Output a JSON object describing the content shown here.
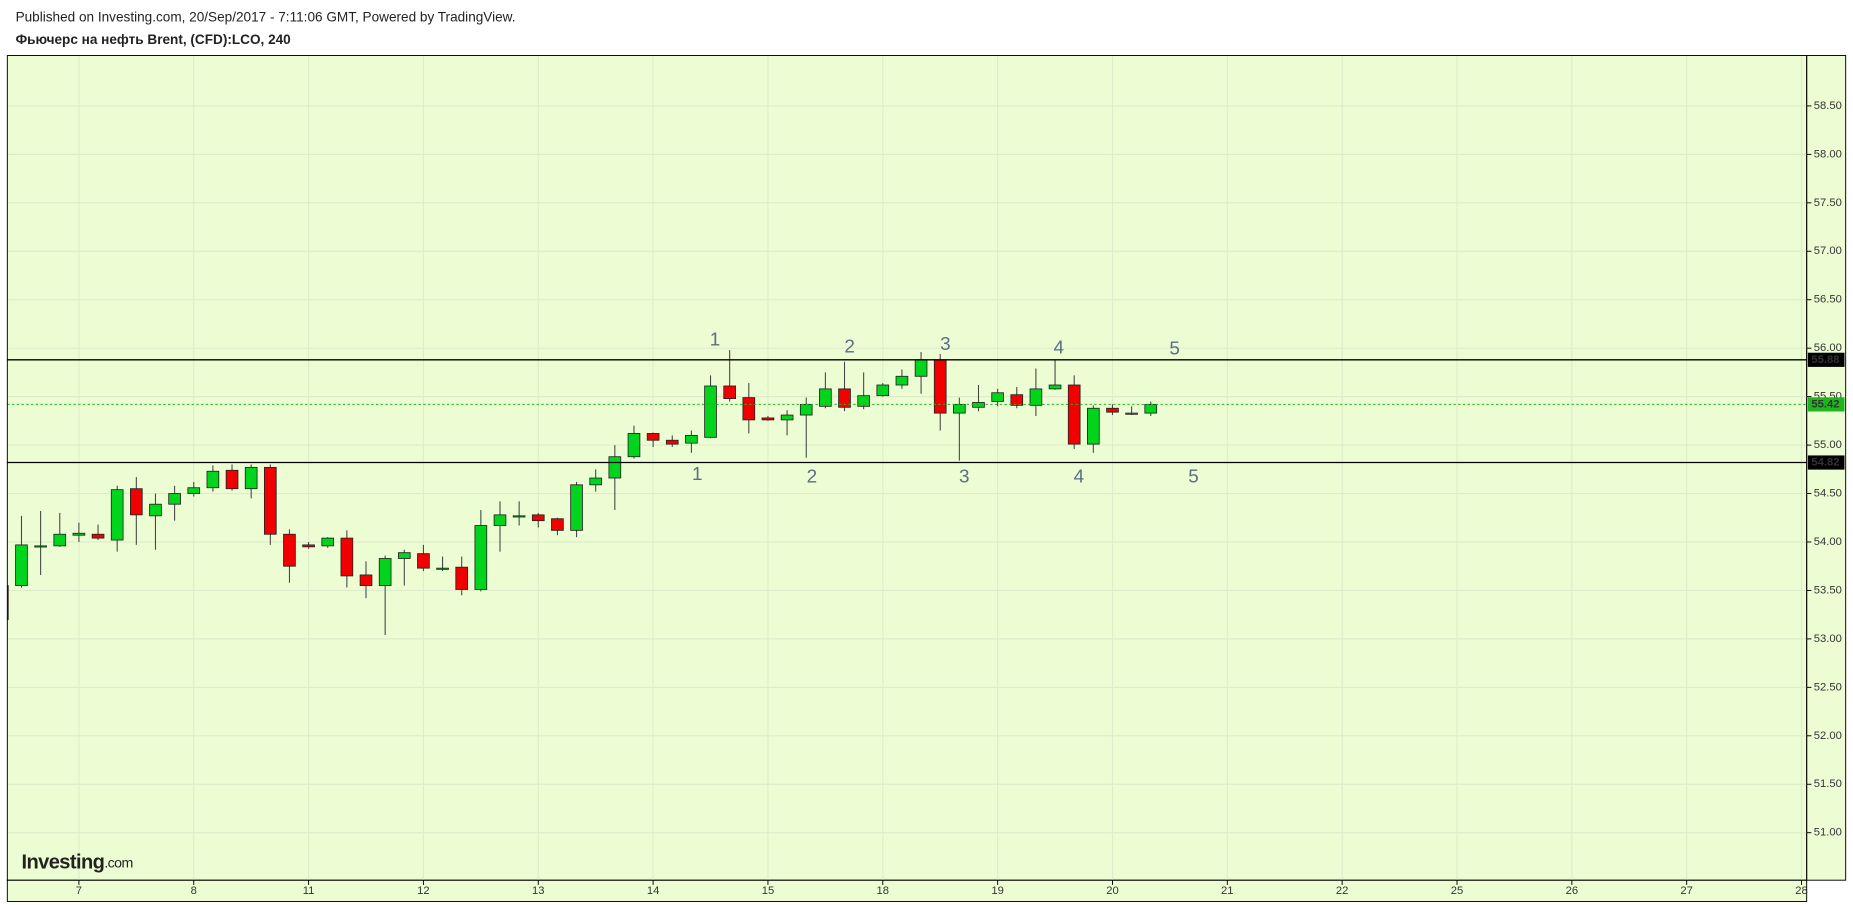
{
  "header": {
    "published": "Published on Investing.com, 20/Sep/2017 - 7:11:06 GMT, Powered by TradingView.",
    "symbol": "Фьючерс на нефть Brent, (CFD):LCO, 240"
  },
  "logo": {
    "main": "Investing",
    "suffix": ".com"
  },
  "chart_data": {
    "type": "candlestick",
    "x": [
      -1,
      0,
      1,
      2,
      3,
      4,
      5,
      6,
      7,
      8,
      9,
      10,
      11,
      12,
      13,
      14,
      15,
      16,
      17,
      18,
      19,
      20,
      21,
      22,
      23,
      24,
      25,
      26,
      27,
      28,
      29,
      30,
      31,
      32,
      33,
      34,
      35,
      36,
      37,
      38,
      39,
      40,
      41,
      42,
      43,
      44,
      45,
      46,
      47,
      48,
      49,
      50,
      51,
      52,
      53,
      54,
      55,
      56,
      57,
      58,
      59
    ],
    "open": [
      53.2,
      53.55,
      53.96,
      53.96,
      54.07,
      54.08,
      54.02,
      54.55,
      54.27,
      54.39,
      54.5,
      54.56,
      54.74,
      54.55,
      54.77,
      54.08,
      53.97,
      53.96,
      54.04,
      53.66,
      53.55,
      53.83,
      53.88,
      53.73,
      53.74,
      53.51,
      54.17,
      54.27,
      54.28,
      54.24,
      54.12,
      54.59,
      54.66,
      54.88,
      55.12,
      55.05,
      55.02,
      55.08,
      55.61,
      55.49,
      55.28,
      55.26,
      55.31,
      55.4,
      55.58,
      55.4,
      55.51,
      55.62,
      55.71,
      55.88,
      55.33,
      55.39,
      55.45,
      55.52,
      55.41,
      55.58,
      55.62,
      55.01,
      55.38,
      55.33,
      55.33
    ],
    "high": [
      53.6,
      54.27,
      54.32,
      54.3,
      54.2,
      54.18,
      54.58,
      54.67,
      54.5,
      54.58,
      54.62,
      54.79,
      54.8,
      54.8,
      54.8,
      54.13,
      54.0,
      54.05,
      54.12,
      53.8,
      53.86,
      53.92,
      53.97,
      53.85,
      53.85,
      54.33,
      54.42,
      54.42,
      54.3,
      54.25,
      54.62,
      54.75,
      55.0,
      55.2,
      55.13,
      55.1,
      55.15,
      55.72,
      55.98,
      55.64,
      55.3,
      55.36,
      55.49,
      55.75,
      55.86,
      55.75,
      55.64,
      55.78,
      55.96,
      55.94,
      55.49,
      55.62,
      55.58,
      55.6,
      55.79,
      55.88,
      55.72,
      55.41,
      55.42,
      55.4,
      55.45
    ],
    "low": [
      53.17,
      53.53,
      53.66,
      53.95,
      54.0,
      54.02,
      53.9,
      53.97,
      53.92,
      54.22,
      54.47,
      54.52,
      54.53,
      54.45,
      53.97,
      53.58,
      53.93,
      53.94,
      53.53,
      53.42,
      53.04,
      53.55,
      53.7,
      53.7,
      53.45,
      53.49,
      53.9,
      54.17,
      54.15,
      54.07,
      54.05,
      54.52,
      54.33,
      54.86,
      54.98,
      54.98,
      54.92,
      55.07,
      55.45,
      55.12,
      55.25,
      55.1,
      54.87,
      55.38,
      55.35,
      55.37,
      55.5,
      55.58,
      55.53,
      55.15,
      54.84,
      55.35,
      55.4,
      55.38,
      55.3,
      55.57,
      54.96,
      54.92,
      55.31,
      55.31,
      55.3
    ],
    "close": [
      53.55,
      53.97,
      53.96,
      54.08,
      54.09,
      54.04,
      54.54,
      54.28,
      54.39,
      54.5,
      54.56,
      54.73,
      54.55,
      54.77,
      54.08,
      53.75,
      53.95,
      54.04,
      53.65,
      53.55,
      53.83,
      53.89,
      53.73,
      53.73,
      53.51,
      54.17,
      54.28,
      54.27,
      54.22,
      54.12,
      54.59,
      54.66,
      54.88,
      55.12,
      55.05,
      55.01,
      55.1,
      55.61,
      55.48,
      55.26,
      55.26,
      55.31,
      55.42,
      55.58,
      55.39,
      55.51,
      55.62,
      55.71,
      55.88,
      55.33,
      55.42,
      55.44,
      55.54,
      55.41,
      55.58,
      55.62,
      55.01,
      55.38,
      55.34,
      55.33,
      55.42
    ],
    "up_color": "#00d41c",
    "down_color": "#f20000",
    "background": "#edfdd3",
    "xlim": [
      -0.74,
      93.27
    ],
    "xticks": [
      {
        "value": 3,
        "label": "7"
      },
      {
        "value": 9,
        "label": "8"
      },
      {
        "value": 15,
        "label": "11"
      },
      {
        "value": 21,
        "label": "12"
      },
      {
        "value": 27,
        "label": "13"
      },
      {
        "value": 33,
        "label": "14"
      },
      {
        "value": 39,
        "label": "15"
      },
      {
        "value": 45,
        "label": "18"
      },
      {
        "value": 51,
        "label": "19"
      },
      {
        "value": 57,
        "label": "20"
      },
      {
        "value": 63,
        "label": "21"
      },
      {
        "value": 69,
        "label": "22"
      },
      {
        "value": 75,
        "label": "25"
      },
      {
        "value": 81,
        "label": "26"
      },
      {
        "value": 87,
        "label": "27"
      },
      {
        "value": 93,
        "label": "28"
      }
    ],
    "ylim": [
      50.51,
      59.02
    ],
    "yticks": [
      {
        "value": 51,
        "label": "51.00"
      },
      {
        "value": 51.5,
        "label": "51.50"
      },
      {
        "value": 52,
        "label": "52.00"
      },
      {
        "value": 52.5,
        "label": "52.50"
      },
      {
        "value": 53,
        "label": "53.00"
      },
      {
        "value": 53.5,
        "label": "53.50"
      },
      {
        "value": 54,
        "label": "54.00"
      },
      {
        "value": 54.5,
        "label": "54.50"
      },
      {
        "value": 55,
        "label": "55.00"
      },
      {
        "value": 55.5,
        "label": "55.50"
      },
      {
        "value": 56,
        "label": "56.00"
      },
      {
        "value": 56.5,
        "label": "56.50"
      },
      {
        "value": 57,
        "label": "57.00"
      },
      {
        "value": 57.5,
        "label": "57.50"
      },
      {
        "value": 58,
        "label": "58.00"
      },
      {
        "value": 58.5,
        "label": "58.50"
      }
    ],
    "grid": true,
    "levels": [
      {
        "value": 55.88,
        "color": "#000000",
        "dashed": false
      },
      {
        "value": 55.42,
        "color": "#1fb51f",
        "dashed": true
      },
      {
        "value": 54.82,
        "color": "#000000",
        "dashed": false
      }
    ],
    "upper_labels": [
      "1",
      "2",
      "3",
      "4",
      "5"
    ],
    "lower_labels": [
      "1",
      "2",
      "3",
      "4",
      "5"
    ]
  }
}
